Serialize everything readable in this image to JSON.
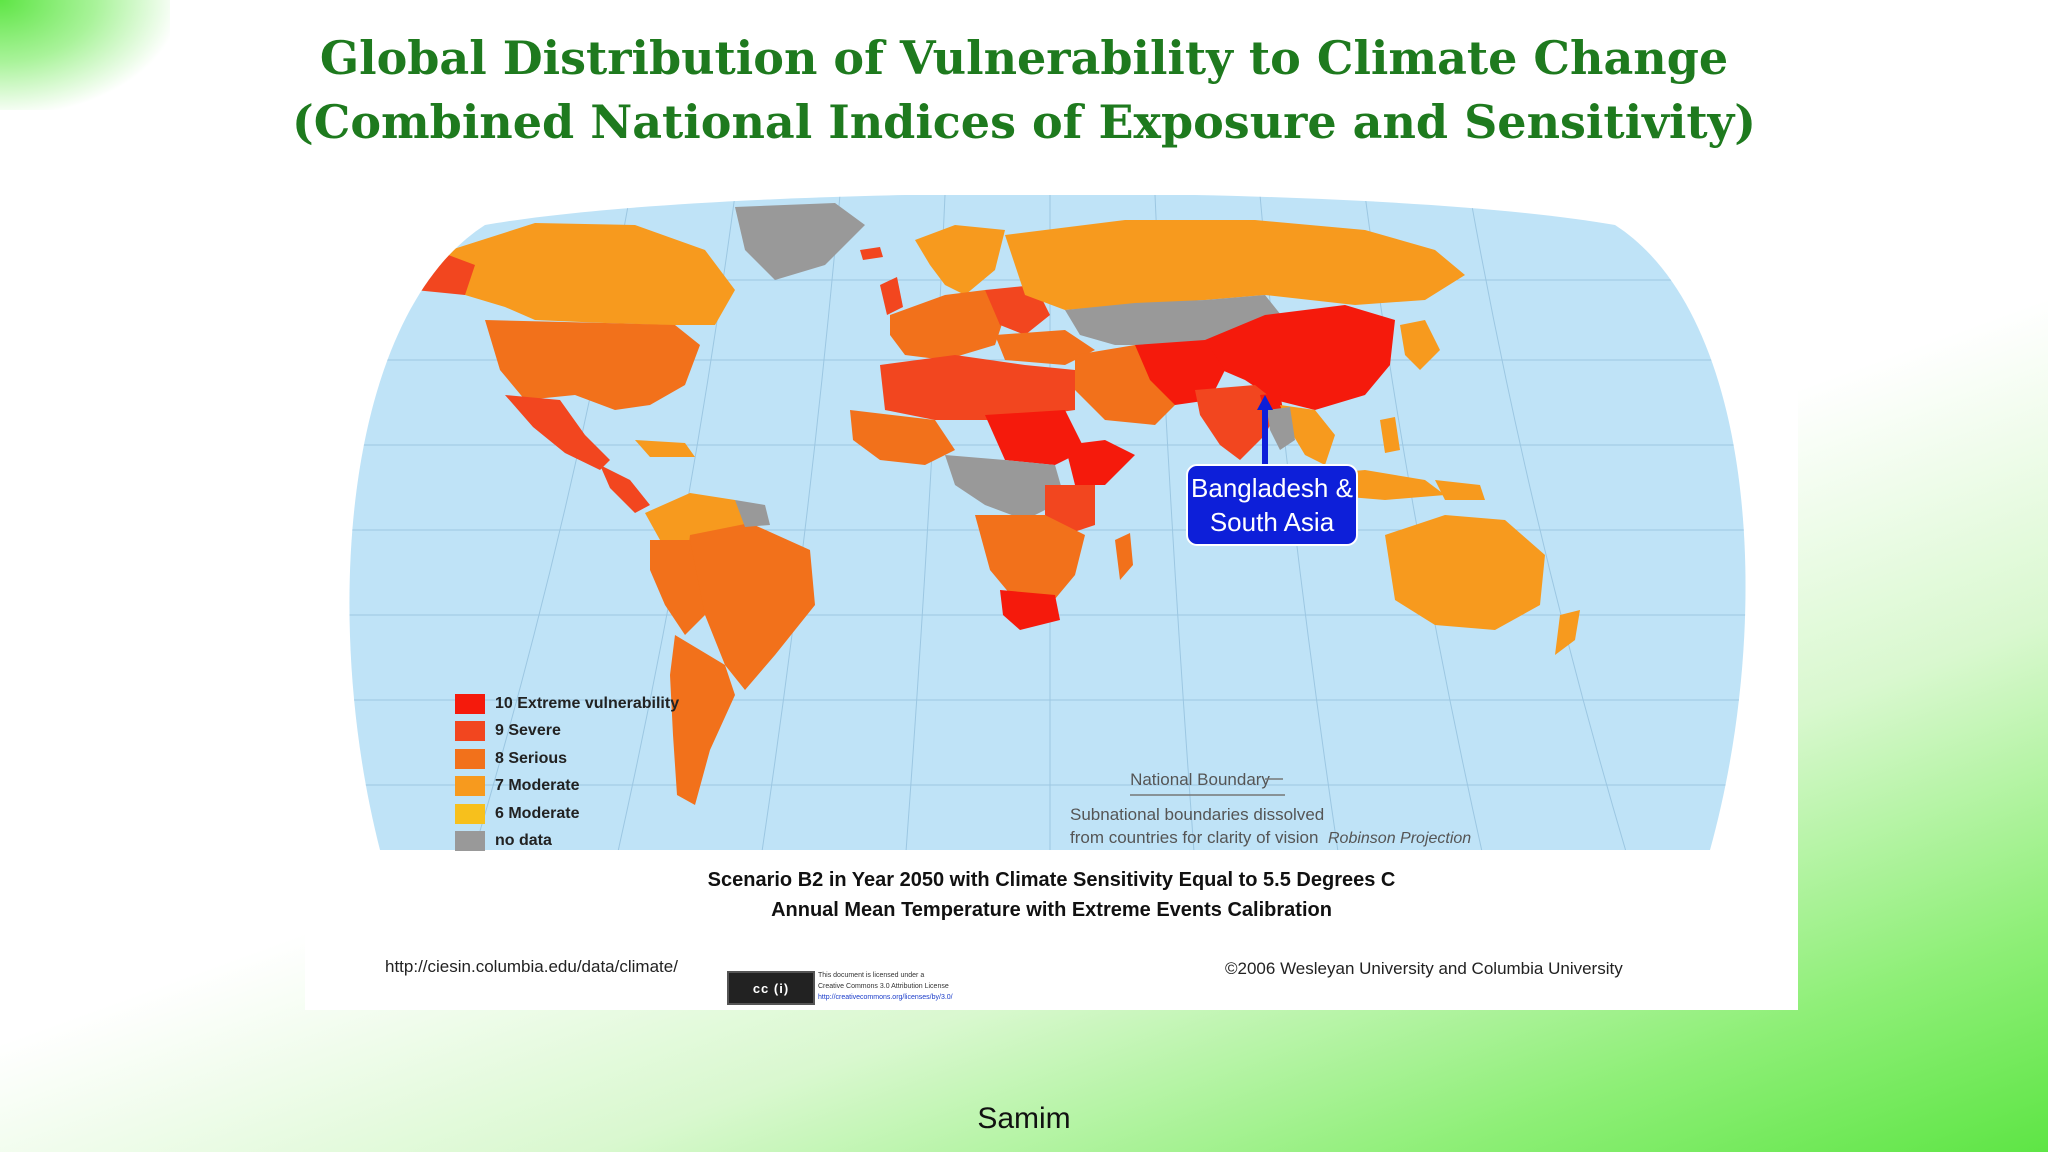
{
  "slide": {
    "title_line1": "Global Distribution of Vulnerability to Climate Change",
    "title_line2": "(Combined National Indices of Exposure and Sensitivity)",
    "author": "Samim"
  },
  "map": {
    "callout_line1": "Bangladesh &",
    "callout_line2": "South Asia",
    "boundary_label": "National Boundary",
    "subnational_note_line1": "Subnational boundaries dissolved",
    "subnational_note_line2": "from countries for clarity of vision",
    "projection": "Robinson Projection",
    "colors": {
      "ocean": "#bfe3f7",
      "extreme": "#f51a0c",
      "severe": "#f2461f",
      "serious": "#f2711b",
      "moderate7": "#f79a1e",
      "moderate6": "#f7c01c",
      "nodata": "#999999",
      "callout_bg": "#0d1fd9"
    }
  },
  "legend": [
    {
      "label": "10 Extreme vulnerability",
      "color": "#f51a0c"
    },
    {
      "label": "9  Severe",
      "color": "#f2461f"
    },
    {
      "label": "8  Serious",
      "color": "#f2711b"
    },
    {
      "label": "7  Moderate",
      "color": "#f79a1e"
    },
    {
      "label": "6  Moderate",
      "color": "#f7c01c"
    },
    {
      "label": "no data",
      "color": "#999999"
    }
  ],
  "caption": {
    "line1": "Scenario B2 in Year 2050 with Climate Sensitivity Equal to 5.5 Degrees C",
    "line2": "Annual Mean Temperature with Extreme Events Calibration"
  },
  "footer": {
    "url": "http://ciesin.columbia.edu/data/climate/",
    "copyright": "©2006 Wesleyan University and Columbia University",
    "cc_badge": "cc (i)",
    "cc_note_line1": "This document is licensed under a",
    "cc_note_line2": "Creative Commons 3.0 Attribution License",
    "cc_note_link": "http://creativecommons.org/licenses/by/3.0/"
  }
}
